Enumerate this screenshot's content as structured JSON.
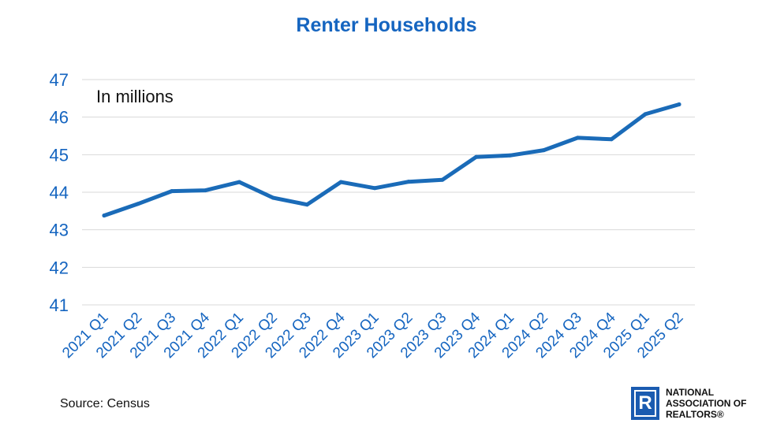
{
  "chart_data": {
    "type": "line",
    "title": "Renter Households",
    "annotation": "In millions",
    "categories": [
      "2021 Q1",
      "2021 Q2",
      "2021 Q3",
      "2021 Q4",
      "2022 Q1",
      "2022 Q2",
      "2022 Q3",
      "2022 Q4",
      "2023 Q1",
      "2023 Q2",
      "2023 Q3",
      "2023 Q4",
      "2024 Q1",
      "2024 Q2",
      "2024 Q3",
      "2024 Q4",
      "2025 Q1",
      "2025 Q2"
    ],
    "series": [
      {
        "values": [
          43.38,
          43.69,
          44.03,
          44.05,
          44.27,
          43.85,
          43.67,
          44.27,
          44.11,
          44.28,
          44.33,
          44.94,
          44.98,
          45.12,
          45.45,
          45.41,
          46.08,
          46.34
        ],
        "color": "#1a6bb8"
      }
    ],
    "ylim": [
      41,
      47
    ],
    "yticks": [
      41,
      42,
      43,
      44,
      45,
      46,
      47
    ],
    "grid": true,
    "legend": "none"
  },
  "footer": {
    "source": "Source: Census",
    "logo_mark": "R",
    "logo_lines": [
      "NATIONAL",
      "ASSOCIATION OF",
      "REALTORS®"
    ]
  }
}
